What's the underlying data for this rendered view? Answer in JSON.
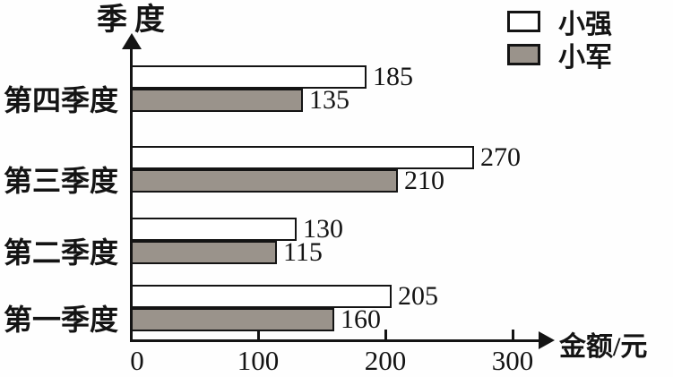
{
  "chart_data": {
    "type": "bar",
    "orientation": "horizontal",
    "title": "",
    "xlabel": "金额/元",
    "ylabel": "季度",
    "xlim": [
      0,
      300
    ],
    "x_ticks": [
      0,
      100,
      200,
      300
    ],
    "grid": false,
    "legend_position": "top-right",
    "categories": [
      "第一季度",
      "第二季度",
      "第三季度",
      "第四季度"
    ],
    "display_order_top_to_bottom": [
      "第四季度",
      "第三季度",
      "第二季度",
      "第一季度"
    ],
    "series": [
      {
        "name": "小强",
        "fill": "#ffffff",
        "values": [
          205,
          130,
          270,
          185
        ]
      },
      {
        "name": "小军",
        "fill": "#9a938b",
        "values": [
          160,
          115,
          210,
          135
        ]
      }
    ],
    "bar_border_color": "#141414",
    "value_labels_shown": true
  }
}
